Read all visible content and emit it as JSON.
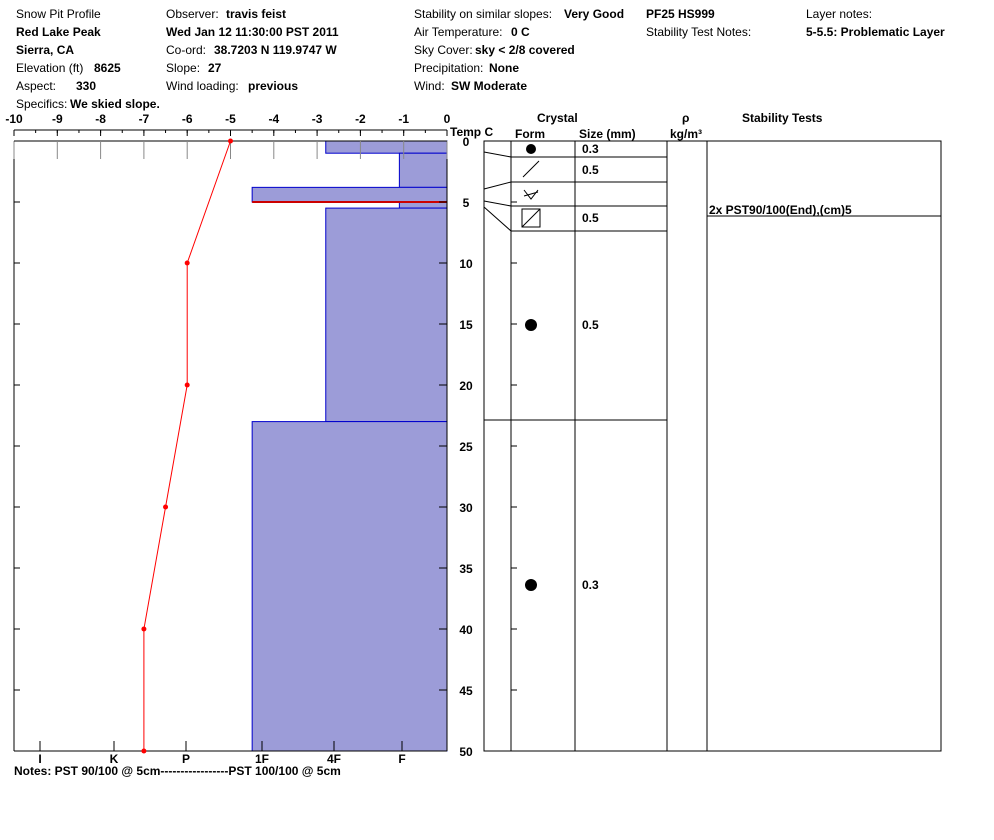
{
  "header": {
    "col1": {
      "title": "Snow Pit Profile",
      "location": "Red Lake Peak",
      "region": "Sierra, CA",
      "elevation_label": "Elevation (ft)",
      "elevation_value": "8625",
      "aspect_label": "Aspect:",
      "aspect_value": "330",
      "specifics_label": "Specifics:",
      "specifics_value": "We skied slope."
    },
    "col2": {
      "observer_label": "Observer:",
      "observer_value": "travis feist",
      "datetime": "Wed Jan 12 11:30:00 PST 2011",
      "coord_label": "Co-ord:",
      "coord_value": "38.7203 N 119.9747 W",
      "slope_label": "Slope:",
      "slope_value": "27",
      "wind_loading_label": "Wind loading:",
      "wind_loading_value": "previous"
    },
    "col3": {
      "stability_label": "Stability on similar slopes:",
      "stability_value": "Very Good",
      "air_temp_label": "Air Temperature:",
      "air_temp_value": "0 C",
      "sky_label": "Sky Cover:",
      "sky_value": "sky < 2/8 covered",
      "precip_label": "Precipitation:",
      "precip_value": "None",
      "wind_label": "Wind:",
      "wind_value": "SW Moderate"
    },
    "col4": {
      "pf_hs": "PF25 HS999",
      "stability_test_notes_label": "Stability Test Notes:"
    },
    "col5": {
      "layer_notes_label": "Layer notes:",
      "layer_notes_value": "5-5.5: Problematic Layer"
    }
  },
  "table_headers": {
    "crystal": "Crystal",
    "form": "Form",
    "size": "Size (mm)",
    "rho": "ρ",
    "density_unit": "kg/m³",
    "stability_tests": "Stability Tests"
  },
  "notes": "Notes:  PST 90/100 @ 5cm-----------------PST 100/100 @ 5cm",
  "stability_test_entry": "2x PST90/100(End),(cm)5",
  "crystal_layers": [
    {
      "top": 0,
      "bottom": 1.5,
      "form": "round-grain",
      "size": "0.3"
    },
    {
      "top": 1.5,
      "bottom": 3.5,
      "form": "decomposing-fragments",
      "size": "0.5"
    },
    {
      "top": 3.5,
      "bottom": 5.5,
      "form": "surface-hoar",
      "size": ""
    },
    {
      "top": 5.5,
      "bottom": 7.5,
      "form": "faceted",
      "size": "0.5"
    },
    {
      "top": 7.5,
      "bottom": 23,
      "form": "round-grain",
      "size": "0.5"
    },
    {
      "top": 23,
      "bottom": 50,
      "form": "round-grain",
      "size": "0.3"
    }
  ],
  "colors": {
    "hardness_fill": "#9c9cd8",
    "hardness_stroke": "#0000cc",
    "temp_line": "#ff0000",
    "weak_layer": "#cc0000"
  },
  "chart_data": {
    "type": "line",
    "title": "",
    "xlabel": "Temp C",
    "ylabel": "",
    "x_range": [
      -10,
      0
    ],
    "y_range": [
      0,
      50
    ],
    "x_ticks": [
      "-10",
      "-9",
      "-8",
      "-7",
      "-6",
      "-5",
      "-4",
      "-3",
      "-2",
      "-1",
      "0"
    ],
    "y_ticks": [
      "0",
      "5",
      "10",
      "15",
      "20",
      "25",
      "30",
      "35",
      "40",
      "45",
      "50"
    ],
    "hardness_ticks": [
      "I",
      "K",
      "P",
      "1F",
      "4F",
      "F"
    ],
    "temperature_profile": [
      {
        "depth": 0,
        "temp": -5
      },
      {
        "depth": 10,
        "temp": -6
      },
      {
        "depth": 20,
        "temp": -6
      },
      {
        "depth": 30,
        "temp": -6.5
      },
      {
        "depth": 40,
        "temp": -7
      },
      {
        "depth": 50,
        "temp": -7
      }
    ],
    "hardness_profile": [
      {
        "top": 0,
        "bottom": 1,
        "temp_equivalent": -2.8
      },
      {
        "top": 1,
        "bottom": 3.8,
        "temp_equivalent": -1.1
      },
      {
        "top": 3.8,
        "bottom": 5,
        "temp_equivalent": -4.5
      },
      {
        "top": 5,
        "bottom": 5.5,
        "temp_equivalent": -1.1
      },
      {
        "top": 5.5,
        "bottom": 23,
        "temp_equivalent": -2.8
      },
      {
        "top": 23,
        "bottom": 50,
        "temp_equivalent": -4.5
      }
    ],
    "weak_layer_depth": 5
  }
}
